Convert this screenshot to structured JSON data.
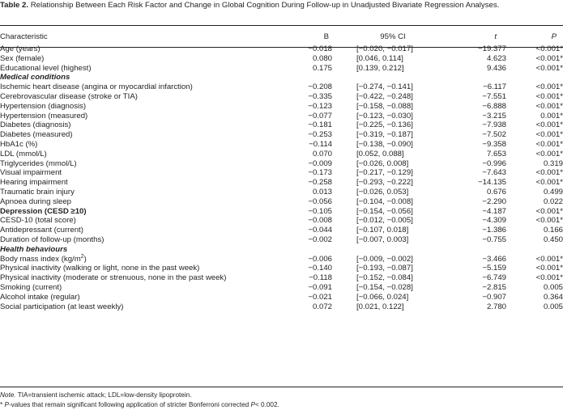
{
  "caption": {
    "label": "Table 2.",
    "text": "Relationship Between Each Risk Factor and Change in Global Cognition During Follow-up in Unadjusted Bivariate Regression Analyses."
  },
  "headers": {
    "characteristic": "Characteristic",
    "b": "B",
    "ci": "95% CI",
    "t": "t",
    "p": "P"
  },
  "rows": [
    {
      "type": "data",
      "label": "Age (years)",
      "b": "−0.018",
      "ci": "[−0.020, −0.017]",
      "t": "−19.377",
      "p": "<0.001*"
    },
    {
      "type": "data",
      "label": "Sex (female)",
      "b": "0.080",
      "ci": "[0.046, 0.114]",
      "t": "4.623",
      "p": "<0.001*"
    },
    {
      "type": "data",
      "label": "Educational level (highest)",
      "b": "0.175",
      "ci": "[0.139, 0.212]",
      "t": "9.436",
      "p": "<0.001*"
    },
    {
      "type": "section",
      "label": "Medical conditions"
    },
    {
      "type": "data",
      "label": "Ischemic heart disease (angina or myocardial infarction)",
      "b": "−0.208",
      "ci": "[−0.274, −0.141]",
      "t": "−6.117",
      "p": "<0.001*"
    },
    {
      "type": "data",
      "label": "Cerebrovascular disease (stroke or TIA)",
      "b": "−0.335",
      "ci": "[−0.422, −0.248]",
      "t": "−7.551",
      "p": "<0.001*"
    },
    {
      "type": "data",
      "label": "Hypertension (diagnosis)",
      "b": "−0.123",
      "ci": "[−0.158, −0.088]",
      "t": "−6.888",
      "p": "<0.001*"
    },
    {
      "type": "data",
      "label": "Hypertension (measured)",
      "b": "−0.077",
      "ci": "[−0.123, −0.030]",
      "t": "−3.215",
      "p": "0.001*"
    },
    {
      "type": "data",
      "label": "Diabetes (diagnosis)",
      "b": "−0.181",
      "ci": "[−0.225, −0.136]",
      "t": "−7.938",
      "p": "<0.001*"
    },
    {
      "type": "data",
      "label": "Diabetes (measured)",
      "b": "−0.253",
      "ci": "[−0.319, −0.187]",
      "t": "−7.502",
      "p": "<0.001*"
    },
    {
      "type": "data",
      "label": "HbA1c (%)",
      "b": "−0.114",
      "ci": "[−0.138, −0.090]",
      "t": "−9.358",
      "p": "<0.001*"
    },
    {
      "type": "data",
      "label": "LDL (mmol/L)",
      "b": "0.070",
      "ci": "[0.052, 0.088]",
      "t": "7.653",
      "p": "<0.001*"
    },
    {
      "type": "data",
      "label": "Triglycerides (mmol/L)",
      "b": "−0.009",
      "ci": "[−0.026, 0.008]",
      "t": "−0.996",
      "p": "0.319"
    },
    {
      "type": "data",
      "label": "Visual impairment",
      "b": "−0.173",
      "ci": "[−0.217, −0.129]",
      "t": "−7.643",
      "p": "<0.001*"
    },
    {
      "type": "data",
      "label": "Hearing impairment",
      "b": "−0.258",
      "ci": "[−0.293, −0.222]",
      "t": "−14.135",
      "p": "<0.001*"
    },
    {
      "type": "data",
      "label": "Traumatic brain injury",
      "b": "0.013",
      "ci": "[−0.026, 0.053]",
      "t": "0.676",
      "p": "0.499"
    },
    {
      "type": "data",
      "label": "Apnoea during sleep",
      "b": "−0.056",
      "ci": "[−0.104, −0.008]",
      "t": "−2.290",
      "p": "0.022"
    },
    {
      "type": "bold",
      "label": "Depression (CESD ≥10)",
      "b": "−0.105",
      "ci": "[−0.154, −0.056]",
      "t": "−4.187",
      "p": "<0.001*"
    },
    {
      "type": "data",
      "label": "CESD-10 (total score)",
      "b": "−0.008",
      "ci": "[−0.012, −0.005]",
      "t": "−4.309",
      "p": "<0.001*"
    },
    {
      "type": "data",
      "label": "Antidepressant (current)",
      "b": "−0.044",
      "ci": "[−0.107, 0.018]",
      "t": "−1.386",
      "p": "0.166"
    },
    {
      "type": "data",
      "label": "Duration of follow-up (months)",
      "b": "−0.002",
      "ci": "[−0.007, 0.003]",
      "t": "−0.755",
      "p": "0.450"
    },
    {
      "type": "section",
      "label": "Health behaviours"
    },
    {
      "type": "bmi",
      "label": "Body mass index (kg/m",
      "sup": "2",
      "label_end": ")",
      "b": "−0.006",
      "ci": "[−0.009, −0.002]",
      "t": "−3.466",
      "p": "<0.001*"
    },
    {
      "type": "data",
      "label": "Physical inactivity (walking or light, none in the past week)",
      "b": "−0.140",
      "ci": "[−0.193, −0.087]",
      "t": "−5.159",
      "p": "<0.001*"
    },
    {
      "type": "data",
      "label": "Physical inactivity (moderate or strenuous, none in the past week)",
      "b": "−0.118",
      "ci": "[−0.152, −0.084]",
      "t": "−6.749",
      "p": "<0.001*"
    },
    {
      "type": "data",
      "label": "Smoking (current)",
      "b": "−0.091",
      "ci": "[−0.154, −0.028]",
      "t": "−2.815",
      "p": "0.005"
    },
    {
      "type": "data",
      "label": "Alcohol intake (regular)",
      "b": "−0.021",
      "ci": "[−0.066, 0.024]",
      "t": "−0.907",
      "p": "0.364"
    },
    {
      "type": "data",
      "label": "Social participation (at least weekly)",
      "b": "0.072",
      "ci": "[0.021, 0.122]",
      "t": "2.780",
      "p": "0.005"
    }
  ],
  "notes": {
    "note_label": "Note.",
    "note_text": " TIA=transient ischemic attack; LDL=low-density lipoprotein.",
    "footnote_mark": "* ",
    "footnote_p": "P",
    "footnote_text": "-values that remain significant following application of stricter Bonferroni corrected ",
    "footnote_p2": "P",
    "footnote_end": "< 0.002."
  }
}
